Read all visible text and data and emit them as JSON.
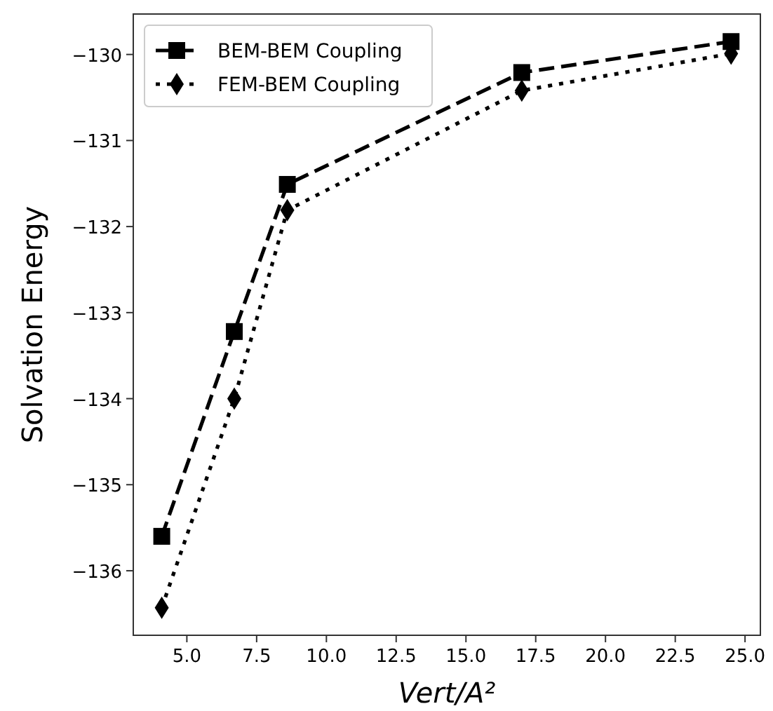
{
  "chart_data": {
    "type": "line",
    "xlabel": "Vert/A²",
    "ylabel": "Solvation Energy",
    "x": [
      4.1,
      6.7,
      8.6,
      17.0,
      24.5
    ],
    "series": [
      {
        "name": "BEM-BEM Coupling",
        "color": "#000000",
        "values": [
          -135.6,
          -133.22,
          -131.51,
          -130.21,
          -129.85
        ],
        "marker": "square",
        "line_style": "dashed"
      },
      {
        "name": "FEM-BEM Coupling",
        "color": "#000000",
        "values": [
          -136.43,
          -134.0,
          -131.81,
          -130.42,
          -129.99
        ],
        "marker": "diamond",
        "line_style": "dotted"
      }
    ],
    "xlim": [
      3.08,
      25.55
    ],
    "xticks": [
      {
        "value": 5,
        "label": "5.0"
      },
      {
        "value": 7.5,
        "label": "7.5"
      },
      {
        "value": 10,
        "label": "10.0"
      },
      {
        "value": 12.5,
        "label": "12.5"
      },
      {
        "value": 15,
        "label": "15.0"
      },
      {
        "value": 17.5,
        "label": "17.5"
      },
      {
        "value": 20,
        "label": "20.0"
      },
      {
        "value": 22.5,
        "label": "22.5"
      },
      {
        "value": 25,
        "label": "25.0"
      }
    ],
    "ylim": [
      -136.75,
      -129.53
    ],
    "yticks": [
      {
        "value": -136,
        "label": "−136"
      },
      {
        "value": -135,
        "label": "−135"
      },
      {
        "value": -134,
        "label": "−134"
      },
      {
        "value": -133,
        "label": "−133"
      },
      {
        "value": -132,
        "label": "−132"
      },
      {
        "value": -131,
        "label": "−131"
      },
      {
        "value": -130,
        "label": "−130"
      }
    ],
    "grid": false,
    "legend": "top left"
  }
}
